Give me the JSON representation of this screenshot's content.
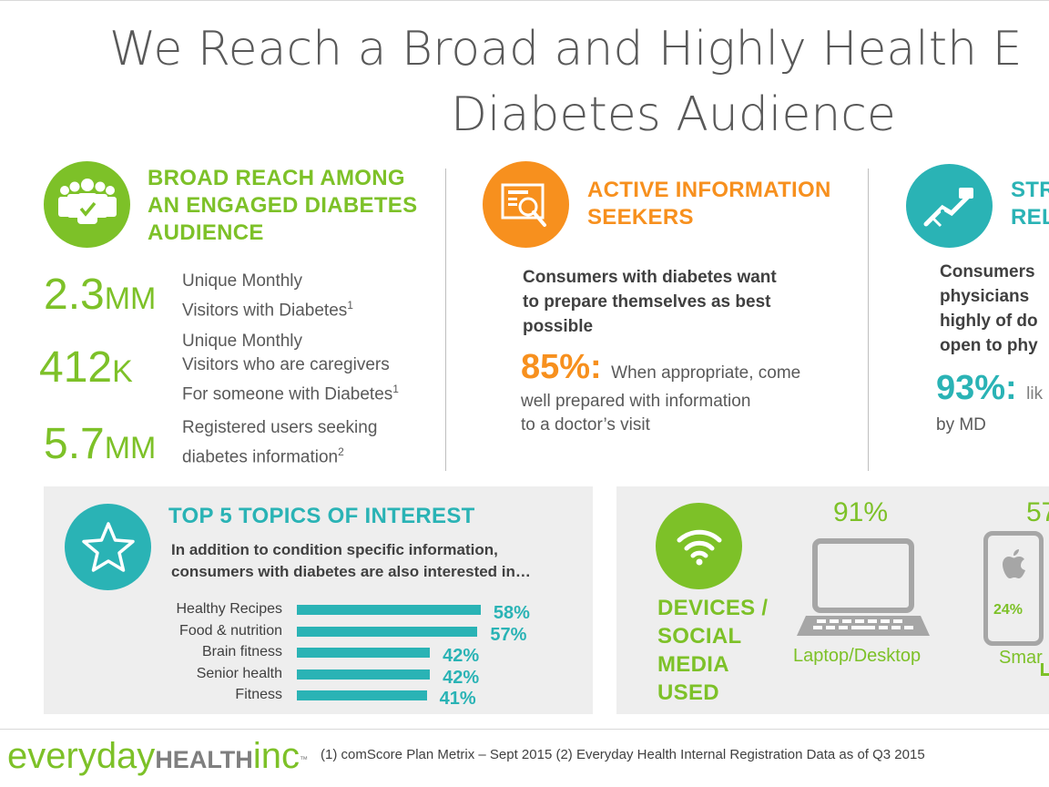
{
  "title": {
    "line1": "We Reach a Broad and Highly Health E",
    "line2": "Diabetes Audience"
  },
  "colors": {
    "green": "#7dc128",
    "orange": "#f7901e",
    "teal": "#2ab3b5",
    "gray_text": "#595959"
  },
  "section1": {
    "icon": "group-check-icon",
    "heading": [
      "BROAD REACH AMONG",
      "AN ENGAGED DIABETES",
      "AUDIENCE"
    ],
    "stats": [
      {
        "num": "2.3",
        "unit": "MM",
        "lines": [
          "Unique Monthly",
          "Visitors with Diabetes"
        ],
        "sup": "1"
      },
      {
        "num": "412",
        "unit": "K",
        "lines": [
          "Unique Monthly",
          "Visitors who are caregivers",
          "For someone with Diabetes"
        ],
        "sup": "1"
      },
      {
        "num": "5.7",
        "unit": "MM",
        "lines": [
          "Registered users seeking",
          "diabetes information"
        ],
        "sup": "2"
      }
    ]
  },
  "section2": {
    "icon": "document-search-icon",
    "heading": [
      "ACTIVE INFORMATION",
      "SEEKERS"
    ],
    "body": [
      "Consumers with diabetes want",
      "to prepare themselves as best",
      "possible"
    ],
    "stat": "85%:",
    "stat_text": [
      "When appropriate, come",
      "well prepared with information",
      "to a doctor’s visit"
    ]
  },
  "section3": {
    "icon": "handshake-icon",
    "heading": [
      "STR",
      "REL"
    ],
    "body": [
      "Consumers",
      "physicians",
      "highly of do",
      "open to phy"
    ],
    "stat": "93%:",
    "stat_text_after": "lik",
    "stat_text_line2": "by MD"
  },
  "topics": {
    "icon": "star-icon",
    "heading": "TOP 5 TOPICS OF INTEREST",
    "subtext": [
      "In addition to condition specific information,",
      "consumers with diabetes are also interested in…"
    ],
    "chart_data": {
      "type": "bar",
      "categories": [
        "Healthy Recipes",
        "Food & nutrition",
        "Brain fitness",
        "Senior health",
        "Fitness"
      ],
      "values": [
        58,
        57,
        42,
        42,
        41
      ],
      "value_labels": [
        "58%",
        "57%",
        "42%",
        "42%",
        "41%"
      ],
      "orientation": "horizontal"
    }
  },
  "devices": {
    "icon": "wifi-icon",
    "heading": [
      "DEVICES /",
      "SOCIAL",
      "MEDIA",
      "USED"
    ],
    "laptop_pct": "91%",
    "laptop_label": "Laptop/Desktop",
    "laptop_icon": "laptop-icon",
    "phone_pct": "57",
    "phone_inner_pct": "24%",
    "phone_label": "Smar",
    "phone_icon": "smartphone-apple-icon"
  },
  "footer": {
    "logo_a": "everyday",
    "logo_b": "HEALTH",
    "logo_c": "inc",
    "logo_tm": "™",
    "note": "(1) comScore Plan Metrix – Sept 2015 (2) Everyday Health Internal Registration Data as of Q3 2015"
  }
}
